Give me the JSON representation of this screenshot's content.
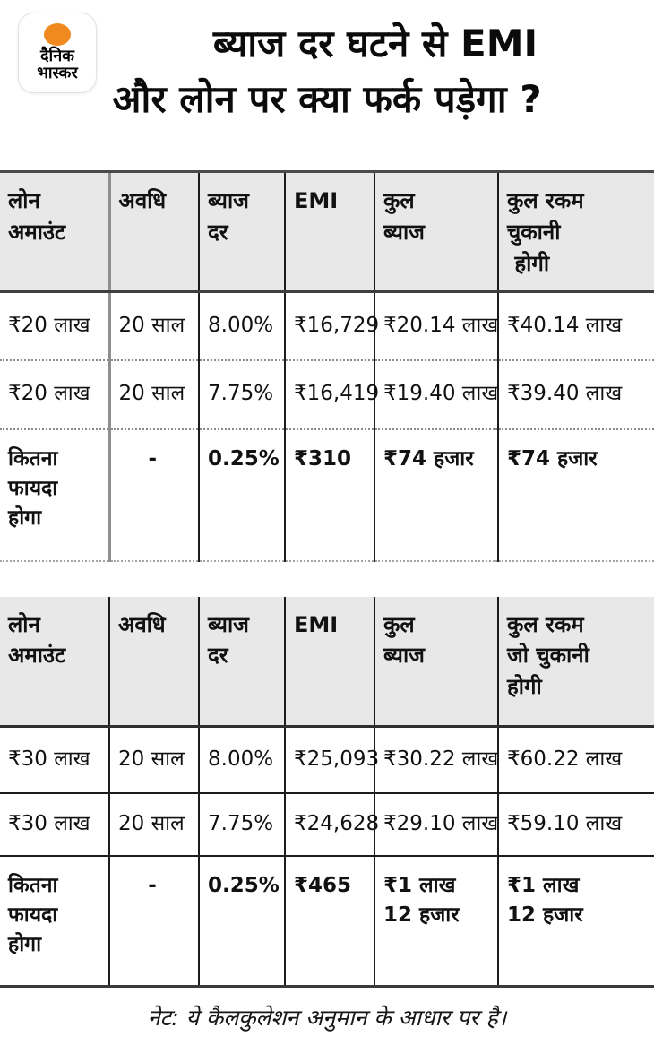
{
  "logo": {
    "line1": "दैनिक",
    "line2": "भास्कर",
    "icon": "sun-dot",
    "dot_color": "#F08A1E"
  },
  "title": {
    "line1": "ब्याज दर घटने से EMI",
    "line2": "और लोन पर क्या फर्क पड़ेगा ?"
  },
  "table1": {
    "headers": [
      "लोन\nअमाउंट",
      "अवधि",
      "ब्याज\nदर",
      "EMI",
      "कुल\nब्याज",
      "कुल रकम\nचुकानी\n होगी"
    ],
    "rows": [
      [
        "₹20 लाख",
        "20 साल",
        "8.00%",
        "₹16,729",
        "₹20.14 लाख",
        "₹40.14 लाख"
      ],
      [
        "₹20 लाख",
        "20 साल",
        "7.75%",
        "₹16,419",
        "₹19.40 लाख",
        "₹39.40 लाख"
      ],
      [
        "कितना\nफायदा\nहोगा",
        "-",
        "0.25%",
        "₹310",
        "₹74 हजार",
        "₹74 हजार"
      ]
    ]
  },
  "table2": {
    "headers": [
      "लोन\nअमाउंट",
      "अवधि",
      "ब्याज\nदर",
      "EMI",
      "कुल\nब्याज",
      "कुल रकम\nजो चुकानी\nहोगी"
    ],
    "rows": [
      [
        "₹30 लाख",
        "20 साल",
        "8.00%",
        "₹25,093",
        "₹30.22 लाख",
        "₹60.22 लाख"
      ],
      [
        "₹30 लाख",
        "20 साल",
        "7.75%",
        "₹24,628",
        "₹29.10 लाख",
        "₹59.10 लाख"
      ],
      [
        "कितना\nफायदा\nहोगा",
        "-",
        "0.25%",
        "₹465",
        "₹1 लाख\n12 हजार",
        "₹1 लाख\n12 हजार"
      ]
    ]
  },
  "footer": {
    "note": "नेट: ये कैलकुलेशन अनुमान के आधार पर है।"
  },
  "colors": {
    "header_bg": "#e8e8e8",
    "border_dark": "#3f3f3f",
    "brand_orange": "#F08A1E",
    "text": "#111111"
  },
  "chart_data": [
    {
      "type": "table",
      "title": "ब्याज दर घटने से EMI और लोन पर क्या फर्क पड़ेगा ? (₹20 लाख लोन)",
      "columns": [
        "लोन अमाउंट",
        "अवधि",
        "ब्याज दर",
        "EMI",
        "कुल ब्याज",
        "कुल रकम चुकानी होगी"
      ],
      "rows": [
        [
          "₹20 लाख",
          "20 साल",
          "8.00%",
          "₹16,729",
          "₹20.14 लाख",
          "₹40.14 लाख"
        ],
        [
          "₹20 लाख",
          "20 साल",
          "7.75%",
          "₹16,419",
          "₹19.40 लाख",
          "₹39.40 लाख"
        ],
        [
          "कितना फायदा होगा",
          "-",
          "0.25%",
          "₹310",
          "₹74 हजार",
          "₹74 हजार"
        ]
      ]
    },
    {
      "type": "table",
      "title": "₹30 लाख लोन",
      "columns": [
        "लोन अमाउंट",
        "अवधि",
        "ब्याज दर",
        "EMI",
        "कुल ब्याज",
        "कुल रकम जो चुकानी होगी"
      ],
      "rows": [
        [
          "₹30 लाख",
          "20 साल",
          "8.00%",
          "₹25,093",
          "₹30.22 लाख",
          "₹60.22 लाख"
        ],
        [
          "₹30 लाख",
          "20 साल",
          "7.75%",
          "₹24,628",
          "₹29.10 लाख",
          "₹59.10 लाख"
        ],
        [
          "कितना फायदा होगा",
          "-",
          "0.25%",
          "₹465",
          "₹1 लाख 12 हजार",
          "₹1 लाख 12 हजार"
        ]
      ]
    }
  ]
}
